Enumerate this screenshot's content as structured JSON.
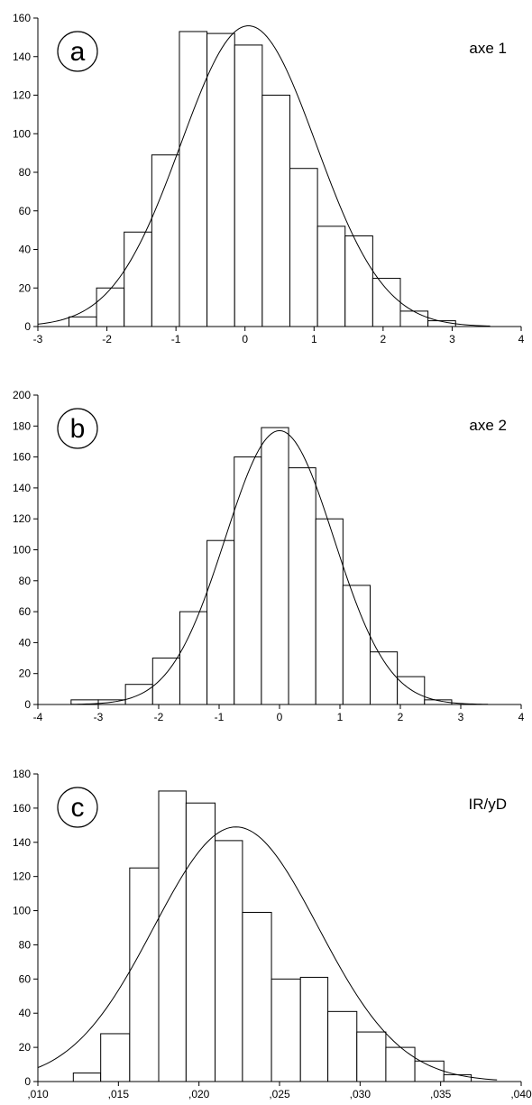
{
  "chart_data": [
    {
      "type": "bar",
      "panel_letter": "a",
      "title": "axe 1",
      "xlim": [
        -3,
        4
      ],
      "ylim": [
        0,
        160
      ],
      "x_ticks": [
        -3,
        -2,
        -1,
        0,
        1,
        2,
        3,
        4
      ],
      "y_ticks": [
        0,
        20,
        40,
        60,
        80,
        100,
        120,
        140,
        160
      ],
      "x_tick_labels": [
        "-3",
        "-2",
        "-1",
        "0",
        "1",
        "2",
        "3",
        "4"
      ],
      "y_tick_labels": [
        "0",
        "20",
        "40",
        "60",
        "80",
        "100",
        "120",
        "140",
        "160"
      ],
      "bin_edges": [
        -2.55,
        -2.15,
        -1.75,
        -1.35,
        -0.95,
        -0.55,
        -0.15,
        0.25,
        0.65,
        1.05,
        1.45,
        1.85,
        2.25,
        2.65,
        3.05
      ],
      "values": [
        5,
        20,
        49,
        89,
        153,
        152,
        146,
        120,
        82,
        52,
        47,
        25,
        8,
        3
      ],
      "normal_curve": {
        "mean": 0.05,
        "sd": 0.98,
        "peak": 156,
        "x_range": [
          -3.0,
          3.55
        ]
      },
      "grid": false,
      "legend": "none"
    },
    {
      "type": "bar",
      "panel_letter": "b",
      "title": "axe 2",
      "xlim": [
        -4,
        4
      ],
      "ylim": [
        0,
        200
      ],
      "x_ticks": [
        -4,
        -3,
        -2,
        -1,
        0,
        1,
        2,
        3,
        4
      ],
      "y_ticks": [
        0,
        20,
        40,
        60,
        80,
        100,
        120,
        140,
        160,
        180,
        200
      ],
      "x_tick_labels": [
        "-4",
        "-3",
        "-2",
        "-1",
        "0",
        "1",
        "2",
        "3",
        "4"
      ],
      "y_tick_labels": [
        "0",
        "20",
        "40",
        "60",
        "80",
        "100",
        "120",
        "140",
        "160",
        "180",
        "200"
      ],
      "bin_edges": [
        -3.45,
        -3.0,
        -2.55,
        -2.1,
        -1.65,
        -1.2,
        -0.75,
        -0.3,
        0.15,
        0.6,
        1.05,
        1.5,
        1.95,
        2.4,
        2.85
      ],
      "values": [
        3,
        3,
        13,
        30,
        60,
        106,
        160,
        179,
        153,
        120,
        77,
        34,
        18,
        3
      ],
      "normal_curve": {
        "mean": 0.0,
        "sd": 0.9,
        "peak": 177,
        "x_range": [
          -3.45,
          3.45
        ]
      },
      "grid": false,
      "legend": "none"
    },
    {
      "type": "bar",
      "panel_letter": "c",
      "title": "IR/yD",
      "xlim": [
        0.01,
        0.04
      ],
      "ylim": [
        0,
        180
      ],
      "x_ticks": [
        0.01,
        0.015,
        0.02,
        0.025,
        0.03,
        0.035,
        0.04
      ],
      "y_ticks": [
        0,
        20,
        40,
        60,
        80,
        100,
        120,
        140,
        160,
        180
      ],
      "x_tick_labels": [
        ",010",
        ",015",
        ",020",
        ",025",
        ",030",
        ",035",
        ",040"
      ],
      "y_tick_labels": [
        "0",
        "20",
        "40",
        "60",
        "80",
        "100",
        "120",
        "140",
        "160",
        "180"
      ],
      "bin_edges": [
        0.0122,
        0.0139,
        0.0157,
        0.0175,
        0.0192,
        0.021,
        0.0227,
        0.0245,
        0.0263,
        0.028,
        0.0298,
        0.0316,
        0.0334,
        0.0352,
        0.0369,
        0.0387
      ],
      "values": [
        5,
        28,
        125,
        170,
        163,
        141,
        99,
        60,
        61,
        41,
        29,
        20,
        12,
        4,
        0
      ],
      "normal_curve": {
        "mean": 0.0223,
        "sd": 0.0051,
        "peak": 149,
        "x_range": [
          0.01,
          0.0385
        ]
      },
      "grid": false,
      "legend": "none"
    }
  ]
}
